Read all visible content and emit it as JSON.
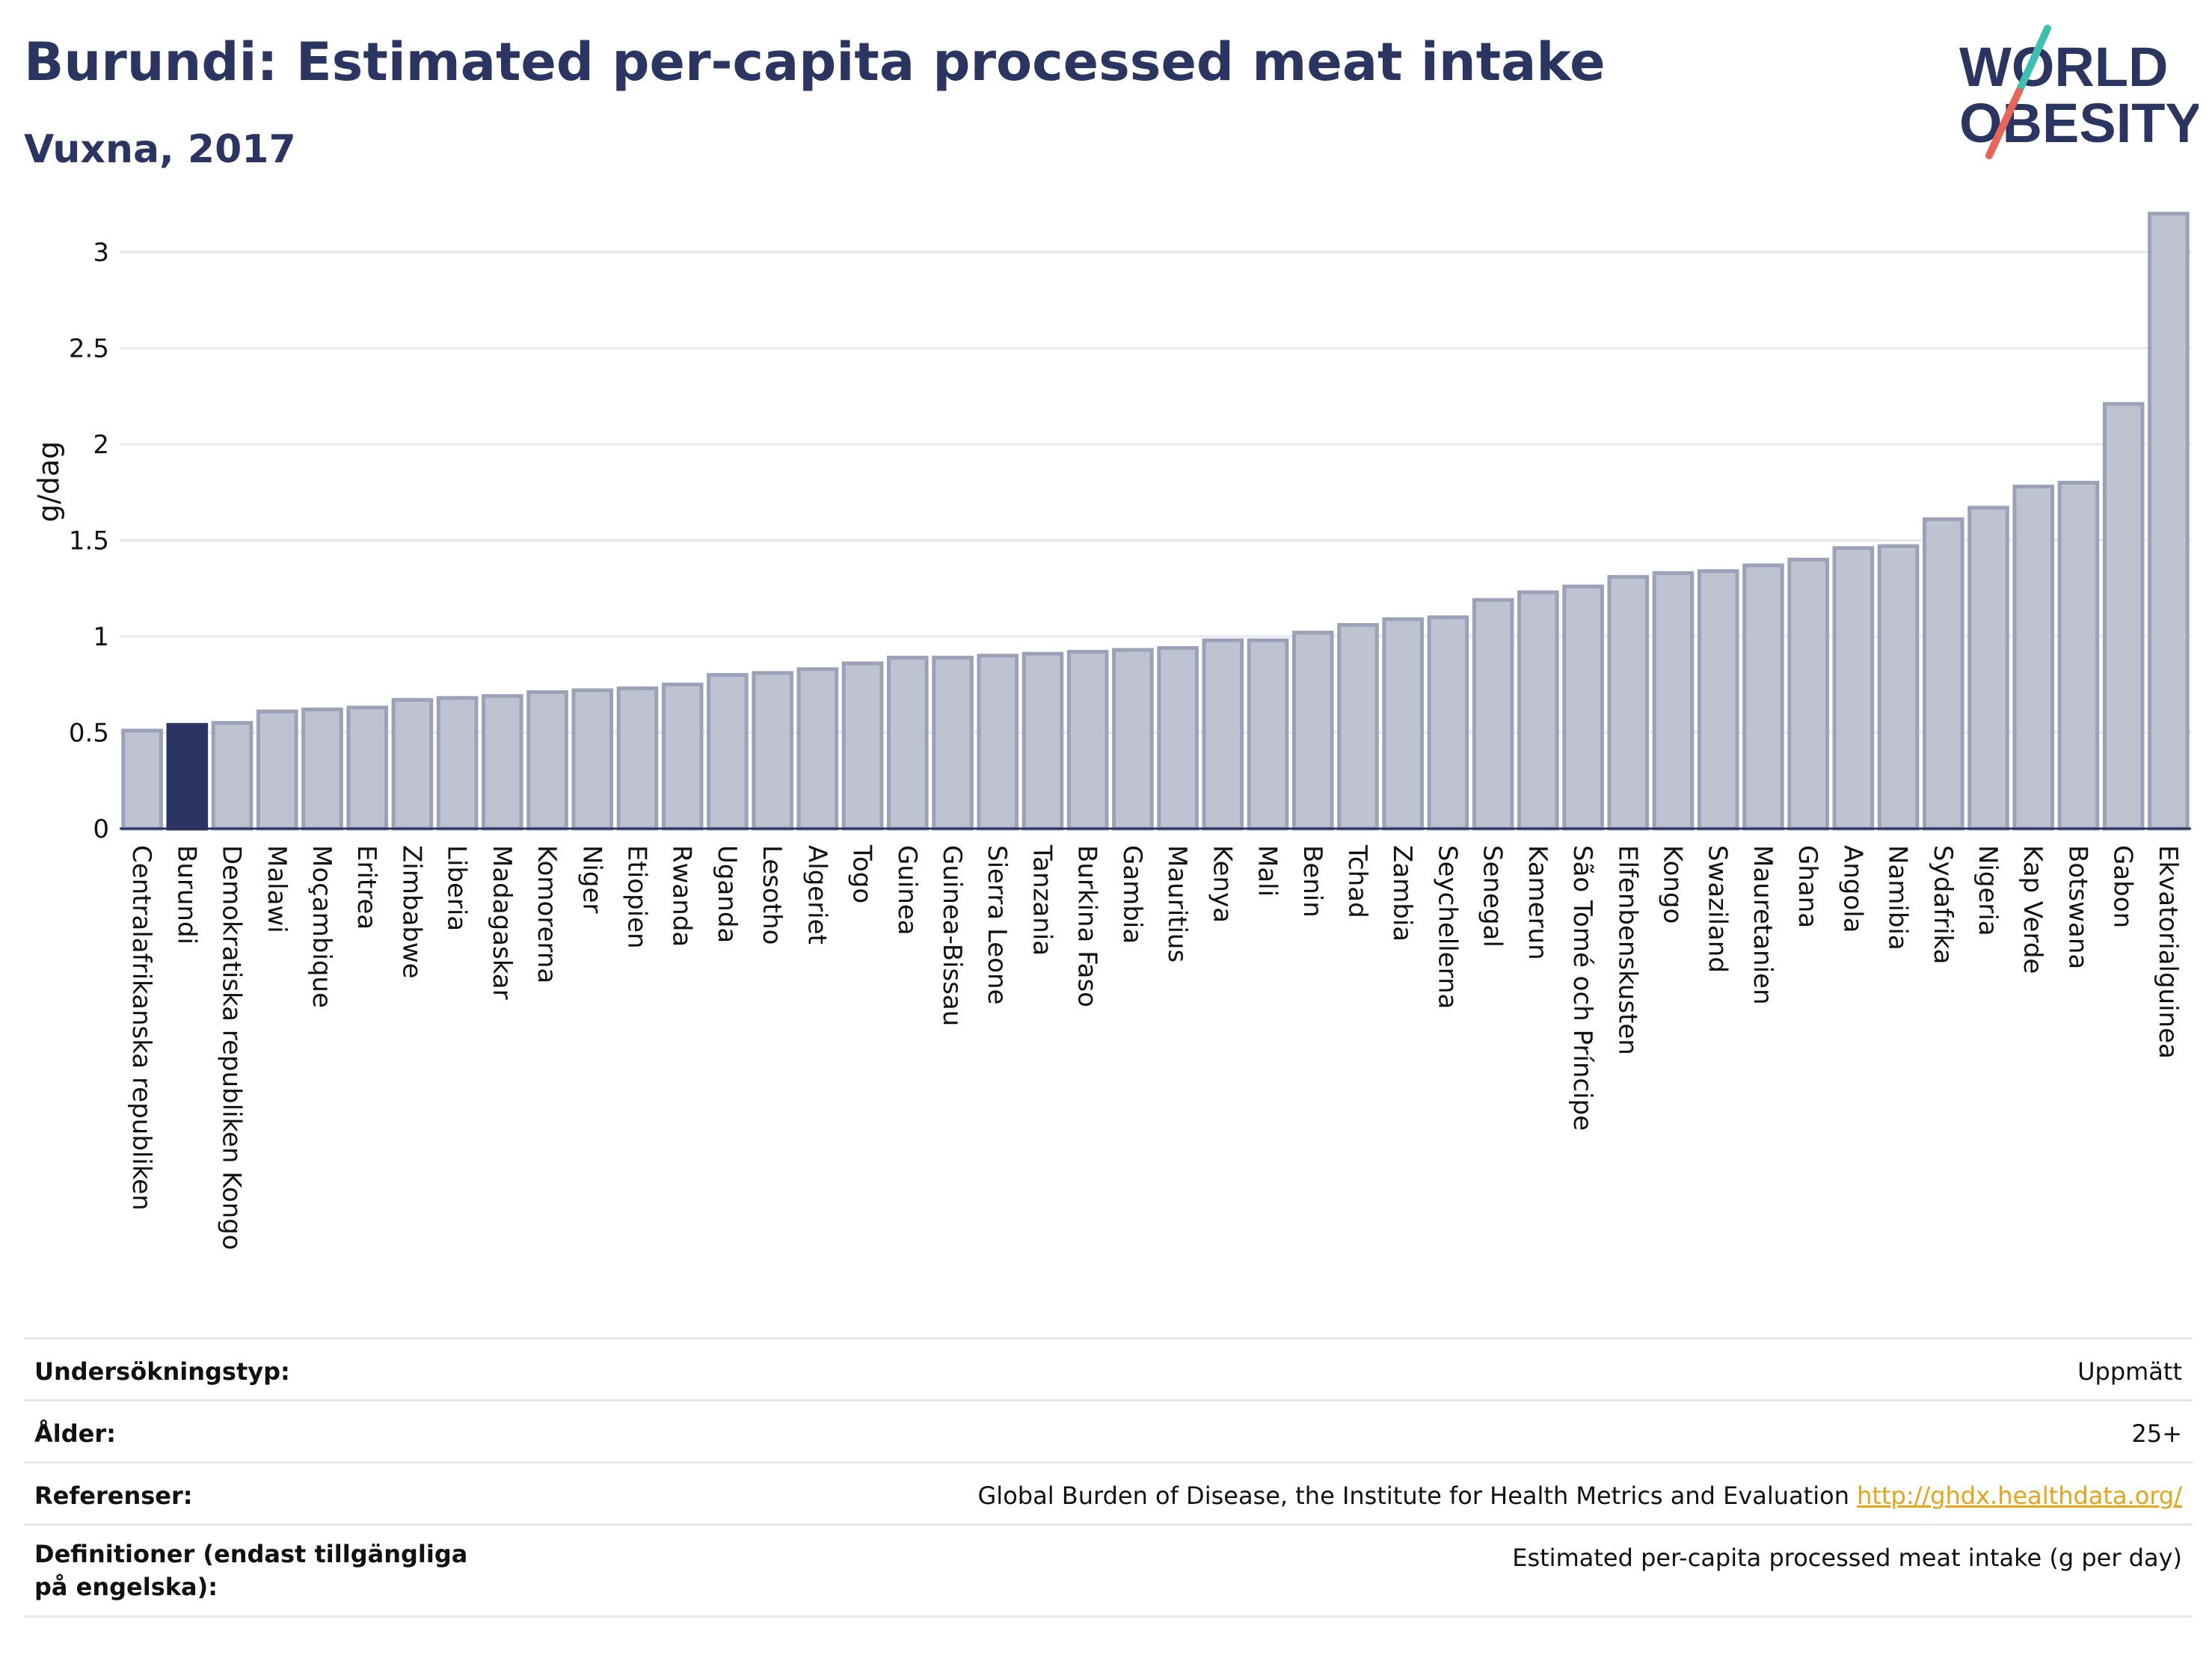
{
  "header": {
    "title": "Burundi: Estimated per-capita processed meat intake",
    "subtitle": "Vuxna, 2017"
  },
  "logo": {
    "line1": "WORLD",
    "line2": "OBESITY",
    "accent_colors": [
      "#3dbfb1",
      "#e8655a"
    ]
  },
  "colors": {
    "bar": "#bfc3d1",
    "bar_stroke": "#9ba1b8",
    "highlight": "#2b3561",
    "grid": "#e6e8ee",
    "axis": "#2b3561"
  },
  "chart_data": {
    "type": "bar",
    "ylabel": "g/dag",
    "ylim": [
      0,
      3.3
    ],
    "yticks": [
      0,
      0.5,
      1,
      1.5,
      2,
      2.5,
      3
    ],
    "ytick_labels": [
      "0",
      "0.5",
      "1",
      "1.5",
      "2",
      "2.5",
      "3"
    ],
    "highlight": "Burundi",
    "categories": [
      "Centralafrikanska republiken",
      "Burundi",
      "Demokratiska republiken Kongo",
      "Malawi",
      "Moçambique",
      "Eritrea",
      "Zimbabwe",
      "Liberia",
      "Madagaskar",
      "Komorerna",
      "Niger",
      "Etiopien",
      "Rwanda",
      "Uganda",
      "Lesotho",
      "Algeriet",
      "Togo",
      "Guinea",
      "Guinea-Bissau",
      "Sierra Leone",
      "Tanzania",
      "Burkina Faso",
      "Gambia",
      "Mauritius",
      "Kenya",
      "Mali",
      "Benin",
      "Tchad",
      "Zambia",
      "Seychellerna",
      "Senegal",
      "Kamerun",
      "São Tomé och Príncipe",
      "Elfenbenskusten",
      "Kongo",
      "Swaziland",
      "Mauretanien",
      "Ghana",
      "Angola",
      "Namibia",
      "Sydafrika",
      "Nigeria",
      "Kap Verde",
      "Botswana",
      "Gabon",
      "Ekvatorialguinea"
    ],
    "values": [
      0.51,
      0.54,
      0.55,
      0.61,
      0.62,
      0.63,
      0.67,
      0.68,
      0.69,
      0.71,
      0.72,
      0.73,
      0.75,
      0.8,
      0.81,
      0.83,
      0.86,
      0.89,
      0.89,
      0.9,
      0.91,
      0.92,
      0.93,
      0.94,
      0.98,
      0.98,
      1.02,
      1.06,
      1.09,
      1.1,
      1.19,
      1.23,
      1.26,
      1.31,
      1.33,
      1.34,
      1.37,
      1.4,
      1.46,
      1.47,
      1.61,
      1.67,
      1.78,
      1.8,
      2.21,
      3.2
    ]
  },
  "info": [
    {
      "label": "Undersökningstyp:",
      "value": "Uppmätt"
    },
    {
      "label": "Ålder:",
      "value": "25+"
    },
    {
      "label": "Referenser:",
      "value": "Global Burden of Disease, the Institute for Health Metrics and Evaluation",
      "link": "http://ghdx.healthdata.org/"
    },
    {
      "label": "Definitioner (endast tillgängliga på engelska):",
      "value": "Estimated per-capita processed meat intake (g per day)"
    }
  ]
}
